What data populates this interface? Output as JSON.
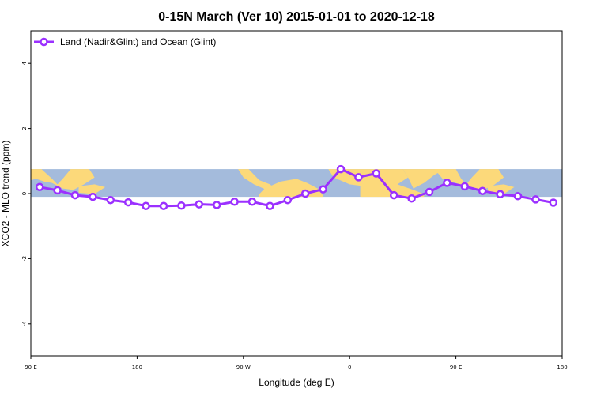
{
  "chart_data": {
    "type": "line",
    "title": "0-15N March (Ver 10)   2015-01-01 to 2020-12-18",
    "xlabel": "Longitude (deg E)",
    "ylabel": "XCO2 - MLO trend (ppm)",
    "xlim": [
      90,
      450
    ],
    "ylim": [
      -5,
      5
    ],
    "x_ticks": [
      {
        "value": 90,
        "label": "90 E"
      },
      {
        "value": 162,
        "label": "180"
      },
      {
        "value": 234,
        "label": "90 W"
      },
      {
        "value": 306,
        "label": "0"
      },
      {
        "value": 378,
        "label": "90 E"
      },
      {
        "value": 450,
        "label": "180"
      }
    ],
    "y_ticks": [
      {
        "value": -4,
        "label": "-4"
      },
      {
        "value": -2,
        "label": "-2"
      },
      {
        "value": 0,
        "label": "0"
      },
      {
        "value": 2,
        "label": "2"
      },
      {
        "value": 4,
        "label": "4"
      }
    ],
    "map_band": {
      "lat_range": [
        0,
        15
      ],
      "y_range": [
        -0.1,
        0.75
      ],
      "ocean_color": "#a4bbdc",
      "land_color": "#fcd97a"
    },
    "series": [
      {
        "name": "Land (Nadir&Glint) and Ocean (Glint)",
        "color": "#9b30ff",
        "x": [
          96,
          108,
          120,
          132,
          144,
          156,
          168,
          180,
          192,
          204,
          216,
          228,
          240,
          252,
          264,
          276,
          288,
          300,
          312,
          324,
          336,
          348,
          360,
          372,
          384,
          396,
          408,
          420,
          432,
          444
        ],
        "values": [
          0.2,
          0.1,
          -0.05,
          -0.1,
          -0.2,
          -0.27,
          -0.38,
          -0.38,
          -0.37,
          -0.33,
          -0.35,
          -0.25,
          -0.25,
          -0.38,
          -0.2,
          0.0,
          0.13,
          0.75,
          0.5,
          0.62,
          -0.05,
          -0.15,
          0.05,
          0.33,
          0.22,
          0.08,
          -0.02,
          -0.08,
          -0.18,
          -0.28
        ]
      }
    ],
    "legend_position": "top-left"
  }
}
